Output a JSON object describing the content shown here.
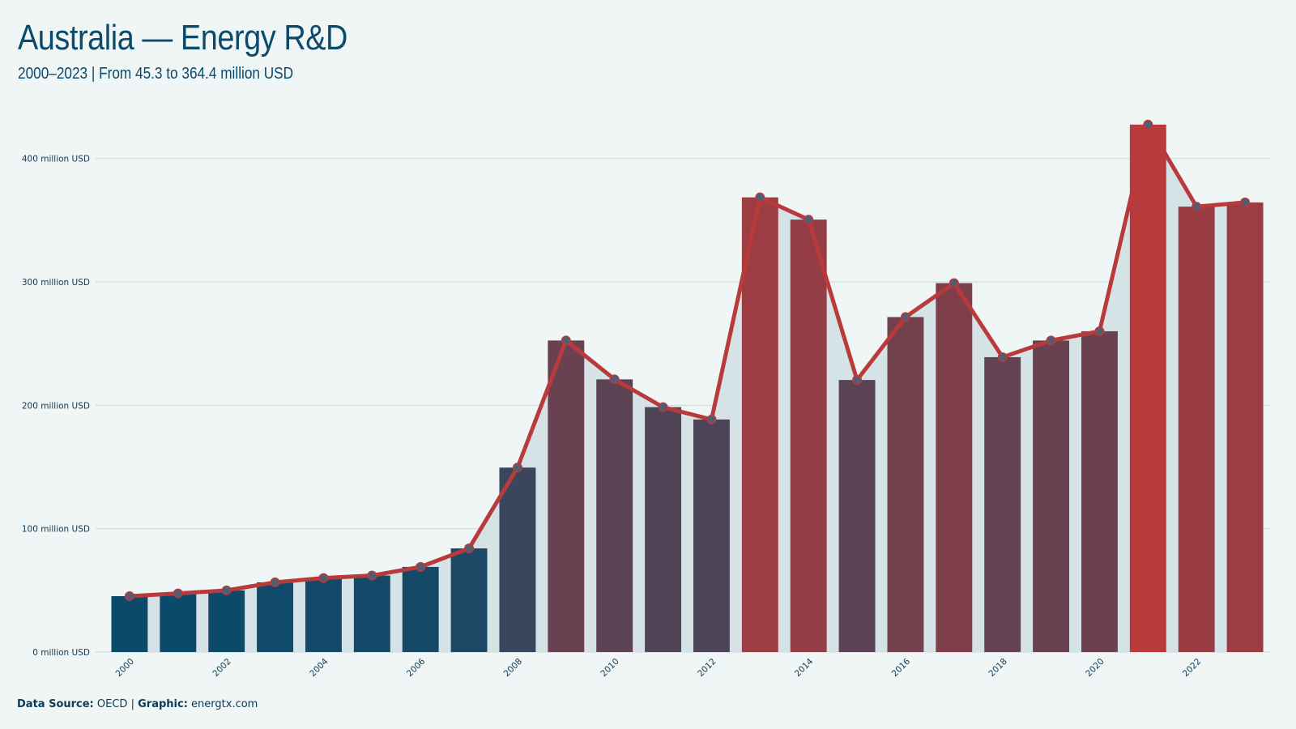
{
  "title": "Australia — Energy R&D",
  "subtitle": "2000–2023 | From 45.3 to 364.4 million USD",
  "footer": {
    "source_label": "Data Source:",
    "source_value": "OECD",
    "separator": "|",
    "graphic_label": "Graphic:",
    "graphic_value": "energtx.com"
  },
  "colors": {
    "background": "#f0f5f5",
    "title": "#0b4a6b",
    "line": "#b83a3a",
    "area": "#d6e3e6",
    "low": "#0b4a6b",
    "high": "#b83a3a"
  },
  "chart_data": {
    "type": "bar",
    "x": [
      2000,
      2001,
      2002,
      2003,
      2004,
      2005,
      2006,
      2007,
      2008,
      2009,
      2010,
      2011,
      2012,
      2013,
      2014,
      2015,
      2016,
      2017,
      2018,
      2019,
      2020,
      2021,
      2022,
      2023
    ],
    "values": [
      45.3,
      47.5,
      50.0,
      56.5,
      60.0,
      62.0,
      69.0,
      84.0,
      149.5,
      252.5,
      221.0,
      198.5,
      188.5,
      368.5,
      350.5,
      220.5,
      271.5,
      299.0,
      239.0,
      252.5,
      260.0,
      427.5,
      361.0,
      364.4
    ],
    "overlay": "line with markers and shaded area",
    "ylim": [
      0,
      430
    ],
    "yticks": [
      0,
      100,
      200,
      300,
      400
    ],
    "ytick_labels": [
      "0 million USD",
      "100 million USD",
      "200 million USD",
      "300 million USD",
      "400 million USD"
    ],
    "xtick_labels": [
      "2000",
      "2002",
      "2004",
      "2006",
      "2008",
      "2010",
      "2012",
      "2014",
      "2016",
      "2018",
      "2020",
      "2022"
    ],
    "grid": true,
    "xlabel": "",
    "ylabel": ""
  }
}
